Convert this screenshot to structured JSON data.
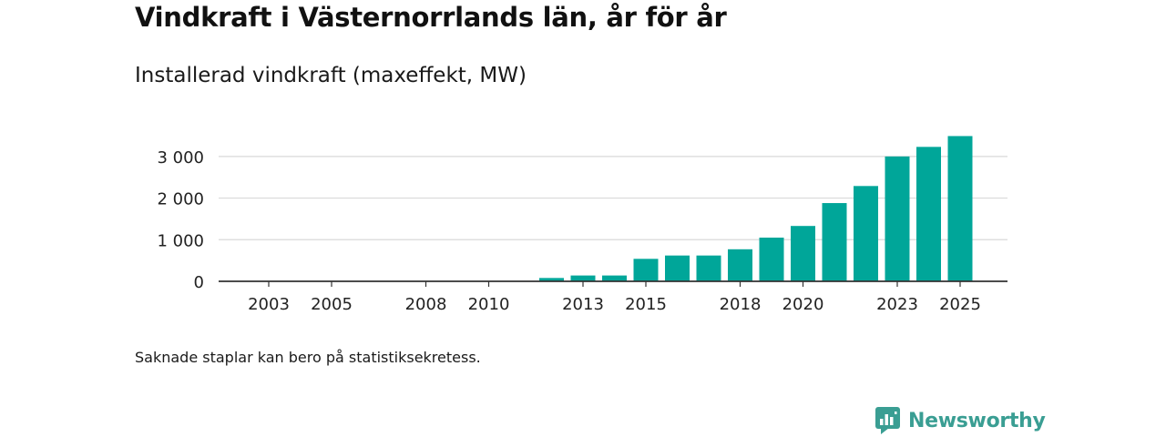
{
  "title": "Vindkraft i Västernorrlands län, år för år",
  "subtitle": "Installerad vindkraft (maxeffekt, MW)",
  "note": "Saknade staplar kan bero på statistiksekretess.",
  "brand": {
    "name": "Newsworthy",
    "icon": "newsworthy-logo-icon",
    "color": "#3a9e93"
  },
  "chart_data": {
    "type": "bar",
    "title": "Vindkraft i Västernorrlands län, år för år",
    "ylabel": "Installerad vindkraft (maxeffekt, MW)",
    "xlabel": "",
    "ylim": [
      0,
      3500
    ],
    "grid": true,
    "bar_color": "#00a699",
    "categories": [
      2003,
      2004,
      2005,
      2006,
      2007,
      2008,
      2009,
      2010,
      2011,
      2012,
      2013,
      2014,
      2015,
      2016,
      2017,
      2018,
      2019,
      2020,
      2021,
      2022,
      2023,
      2024,
      2025
    ],
    "values": [
      0,
      0,
      0,
      0,
      0,
      0,
      0,
      0,
      0,
      80,
      140,
      140,
      540,
      620,
      620,
      770,
      1050,
      1330,
      1880,
      2290,
      3000,
      3230,
      3490
    ],
    "yticks": [
      0,
      1000,
      2000,
      3000
    ],
    "ytick_labels": [
      "0",
      "1 000",
      "2 000",
      "3 000"
    ],
    "xtick_labels": [
      "2003",
      "2005",
      "2008",
      "2010",
      "2013",
      "2015",
      "2018",
      "2020",
      "2023",
      "2025"
    ]
  }
}
